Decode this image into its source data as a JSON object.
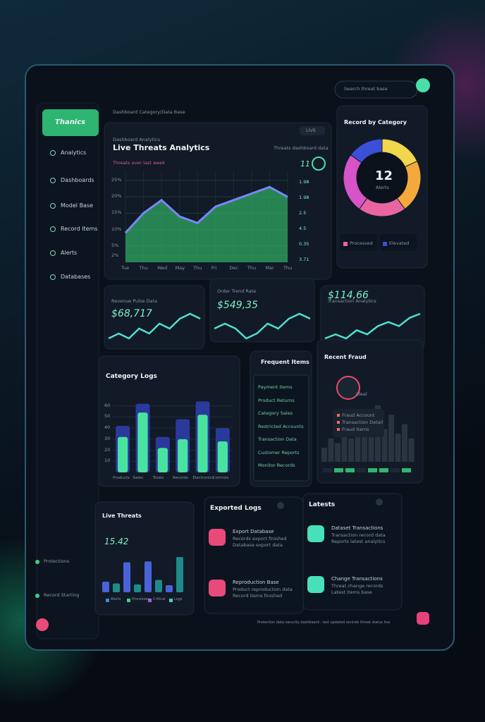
{
  "sidebar": {
    "logo": "Thanics",
    "nav": [
      "Analytics",
      "Dashboards",
      "Model Base",
      "Record Items",
      "Alerts",
      "Databases"
    ],
    "footer": [
      "Protections",
      "Record Starting"
    ]
  },
  "header": {
    "breadcrumb": "Dashboard Category/Data Base",
    "search": "Search threat base"
  },
  "live_analytics": {
    "subtitle": "Dashboard Analytics",
    "title": "Live Threats Analytics",
    "tag": "LIVE",
    "link": "Threats dashboard data",
    "legend": "Threats over last week",
    "badge": "11",
    "chart": {
      "type": "area",
      "categories": [
        "Tue",
        "Thu",
        "Wed",
        "May",
        "Thu",
        "Fri",
        "Dec",
        "Thu",
        "Mar",
        "Thu"
      ],
      "values": [
        9,
        15,
        19,
        14,
        12,
        17,
        19,
        21,
        23,
        20
      ],
      "ylim": [
        0,
        28
      ],
      "yticks": [
        {
          "value": 25,
          "label": "25%"
        },
        {
          "value": 20,
          "label": "20%"
        },
        {
          "value": 15,
          "label": "15%"
        },
        {
          "value": 10,
          "label": "10%"
        },
        {
          "value": 5,
          "label": "5%"
        },
        {
          "value": 2,
          "label": "2%"
        }
      ],
      "color": "#2fa862"
    },
    "side_labels": [
      "1.98",
      "1.98",
      "2.5",
      "4.5",
      "0.35",
      "3.71"
    ]
  },
  "category_donut": {
    "title": "Record by Category",
    "center": "12",
    "center_label": "Alerts",
    "legend": [
      "Processed",
      "Elevated"
    ],
    "chart": {
      "type": "pie",
      "values": [
        18,
        22,
        20,
        25,
        15
      ],
      "colors": [
        "#f2d64b",
        "#f5a93a",
        "#e8659f",
        "#d653c8",
        "#3b4fd8"
      ]
    }
  },
  "cards": [
    {
      "title": "Revenue Pulse Data",
      "value": "$68,717",
      "chart": {
        "type": "line",
        "values": [
          4,
          5,
          4,
          6,
          5,
          7,
          6,
          8,
          9,
          8
        ],
        "color": "#4fe0d0"
      }
    },
    {
      "title": "Order Trend Rate",
      "value": "$549,35",
      "chart": {
        "type": "line",
        "values": [
          5,
          6,
          5,
          3,
          4,
          6,
          5,
          7,
          8,
          7
        ],
        "color": "#4fe0d0"
      }
    },
    {
      "title": "Transaction Analytics",
      "value": "$114,66",
      "chart": {
        "type": "line",
        "values": [
          3,
          4,
          3,
          5,
          4,
          6,
          7,
          6,
          8,
          9
        ],
        "color": "#4fe0d0"
      }
    }
  ],
  "category_logs": {
    "title": "Category Logs",
    "chart": {
      "type": "bar",
      "categories": [
        "Products",
        "Sales",
        "Totals",
        "Records",
        "Electronics",
        "Controls"
      ],
      "ylim": [
        0,
        70
      ],
      "yticks": [
        10,
        20,
        30,
        40,
        50,
        60
      ],
      "series": [
        {
          "color": "#2a3a9c",
          "values": [
            42,
            62,
            32,
            48,
            64,
            40
          ]
        },
        {
          "color": "#49e3a0",
          "values": [
            32,
            54,
            22,
            30,
            52,
            28
          ]
        }
      ]
    }
  },
  "frequent_items": {
    "title": "Frequent Items",
    "items": [
      "Payment Items",
      "Product Returns",
      "Category Sales",
      "Restricted Accounts",
      "Transaction Data",
      "Customer Reports",
      "Monitor Records"
    ]
  },
  "recent_fraud": {
    "title": "Recent Fraud",
    "user": "Ideal",
    "items": [
      "Fraud Account",
      "Transaction Detail",
      "Fraud Items"
    ],
    "chart": {
      "type": "bar",
      "values": [
        3,
        5,
        4,
        6,
        5,
        8,
        6,
        9,
        12,
        7,
        10,
        6,
        8,
        5
      ],
      "color": "#2a3340"
    }
  },
  "live_threats": {
    "title": "Live Threats",
    "value": "15.42",
    "legend": [
      "Alerts",
      "Processes",
      "Critical",
      "Logs"
    ],
    "chart": {
      "type": "bar",
      "values": [
        12,
        10,
        34,
        9,
        35,
        14,
        8,
        40
      ],
      "color": "#4a62d8"
    }
  },
  "exported_logs": {
    "title": "Exported Logs",
    "items": [
      {
        "title": "Export Database",
        "lines": [
          "Records export finished",
          "Database export data"
        ]
      },
      {
        "title": "Reproduction Base",
        "lines": [
          "Product reproduction data",
          "Record items finished"
        ]
      }
    ]
  },
  "latests": {
    "title": "Latests",
    "items": [
      {
        "title": "Dataset Transactions",
        "lines": [
          "Transaction record data",
          "Reports latest analytics"
        ]
      },
      {
        "title": "Change Transactions",
        "lines": [
          "Threat change records",
          "Latest items base"
        ]
      }
    ]
  },
  "footer": "Protection data security dashboard - last updated records threat status live"
}
